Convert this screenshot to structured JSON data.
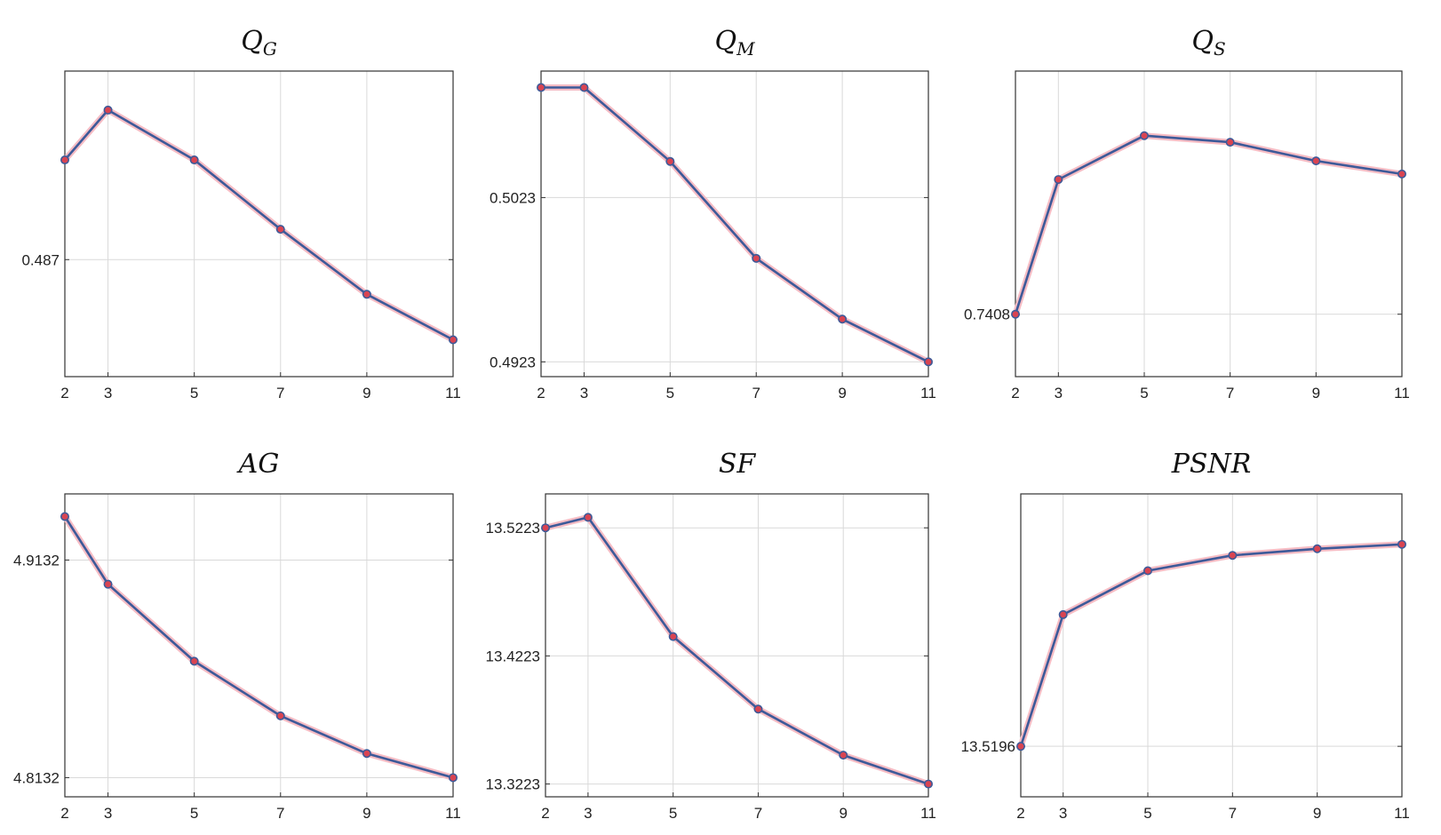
{
  "chart_data": [
    {
      "type": "line",
      "title": "Q",
      "title_sub": "G",
      "x": [
        2,
        3,
        5,
        7,
        9,
        11
      ],
      "xticks": [
        2,
        3,
        5,
        7,
        9,
        11
      ],
      "xlim": [
        2,
        11
      ],
      "y": [
        0.4916,
        0.4939,
        0.4916,
        0.4884,
        0.4854,
        0.4833
      ],
      "yticks": [
        0.487
      ],
      "ytick_labels": [
        "0.487"
      ],
      "ylim": [
        0.4816,
        0.4957
      ],
      "grid": true,
      "colors": {
        "line": "#3d5a99",
        "halo": "#f6bcc4",
        "marker": "#d94452"
      }
    },
    {
      "type": "line",
      "title": "Q",
      "title_sub": "M",
      "x": [
        2,
        3,
        5,
        7,
        9,
        11
      ],
      "xticks": [
        2,
        3,
        5,
        7,
        9,
        11
      ],
      "xlim": [
        2,
        11
      ],
      "y": [
        0.509,
        0.509,
        0.5045,
        0.4986,
        0.4949,
        0.4923
      ],
      "yticks": [
        0.4923,
        0.5023
      ],
      "ytick_labels": [
        "0.4923",
        "0.5023"
      ],
      "ylim": [
        0.4914,
        0.51
      ],
      "grid": true,
      "colors": {
        "line": "#3d5a99",
        "halo": "#f6bcc4",
        "marker": "#d94452"
      }
    },
    {
      "type": "line",
      "title": "Q",
      "title_sub": "S",
      "x": [
        2,
        3,
        5,
        7,
        9,
        11
      ],
      "xticks": [
        2,
        3,
        5,
        7,
        9,
        11
      ],
      "xlim": [
        2,
        11
      ],
      "y": [
        0.7408,
        0.7531,
        0.7571,
        0.7565,
        0.7548,
        0.7536
      ],
      "yticks": [
        0.7408
      ],
      "ytick_labels": [
        "0.7408"
      ],
      "ylim": [
        0.7351,
        0.763
      ],
      "grid": true,
      "colors": {
        "line": "#3d5a99",
        "halo": "#f6bcc4",
        "marker": "#d94452"
      }
    },
    {
      "type": "line",
      "title": "AG",
      "title_sub": "",
      "x": [
        2,
        3,
        5,
        7,
        9,
        11
      ],
      "xticks": [
        2,
        3,
        5,
        7,
        9,
        11
      ],
      "xlim": [
        2,
        11
      ],
      "y": [
        4.9332,
        4.9021,
        4.8667,
        4.8416,
        4.8243,
        4.8132
      ],
      "yticks": [
        4.8132,
        4.9132
      ],
      "ytick_labels": [
        "4.8132",
        "4.9132"
      ],
      "ylim": [
        4.8044,
        4.9436
      ],
      "grid": true,
      "colors": {
        "line": "#3d5a99",
        "halo": "#f6bcc4",
        "marker": "#d94452"
      }
    },
    {
      "type": "line",
      "title": "SF",
      "title_sub": "",
      "x": [
        2,
        3,
        5,
        7,
        9,
        11
      ],
      "xticks": [
        2,
        3,
        5,
        7,
        9,
        11
      ],
      "xlim": [
        2,
        11
      ],
      "y": [
        13.5223,
        13.5305,
        13.4374,
        13.3808,
        13.3448,
        13.3223
      ],
      "yticks": [
        13.3223,
        13.4223,
        13.5223
      ],
      "ytick_labels": [
        "13.3223",
        "13.4223",
        "13.5223"
      ],
      "ylim": [
        13.3123,
        13.5488
      ],
      "grid": true,
      "colors": {
        "line": "#3d5a99",
        "halo": "#f6bcc4",
        "marker": "#d94452"
      }
    },
    {
      "type": "line",
      "title": "PSNR",
      "title_sub": "",
      "x": [
        2,
        3,
        5,
        7,
        9,
        11
      ],
      "xticks": [
        2,
        3,
        5,
        7,
        9,
        11
      ],
      "xlim": [
        2,
        11
      ],
      "y": [
        13.5196,
        13.5256,
        13.5276,
        13.5283,
        13.5286,
        13.5288
      ],
      "yticks": [
        13.5196
      ],
      "ytick_labels": [
        "13.5196"
      ],
      "ylim": [
        13.5173,
        13.5311
      ],
      "grid": true,
      "colors": {
        "line": "#3d5a99",
        "halo": "#f6bcc4",
        "marker": "#d94452"
      }
    }
  ]
}
